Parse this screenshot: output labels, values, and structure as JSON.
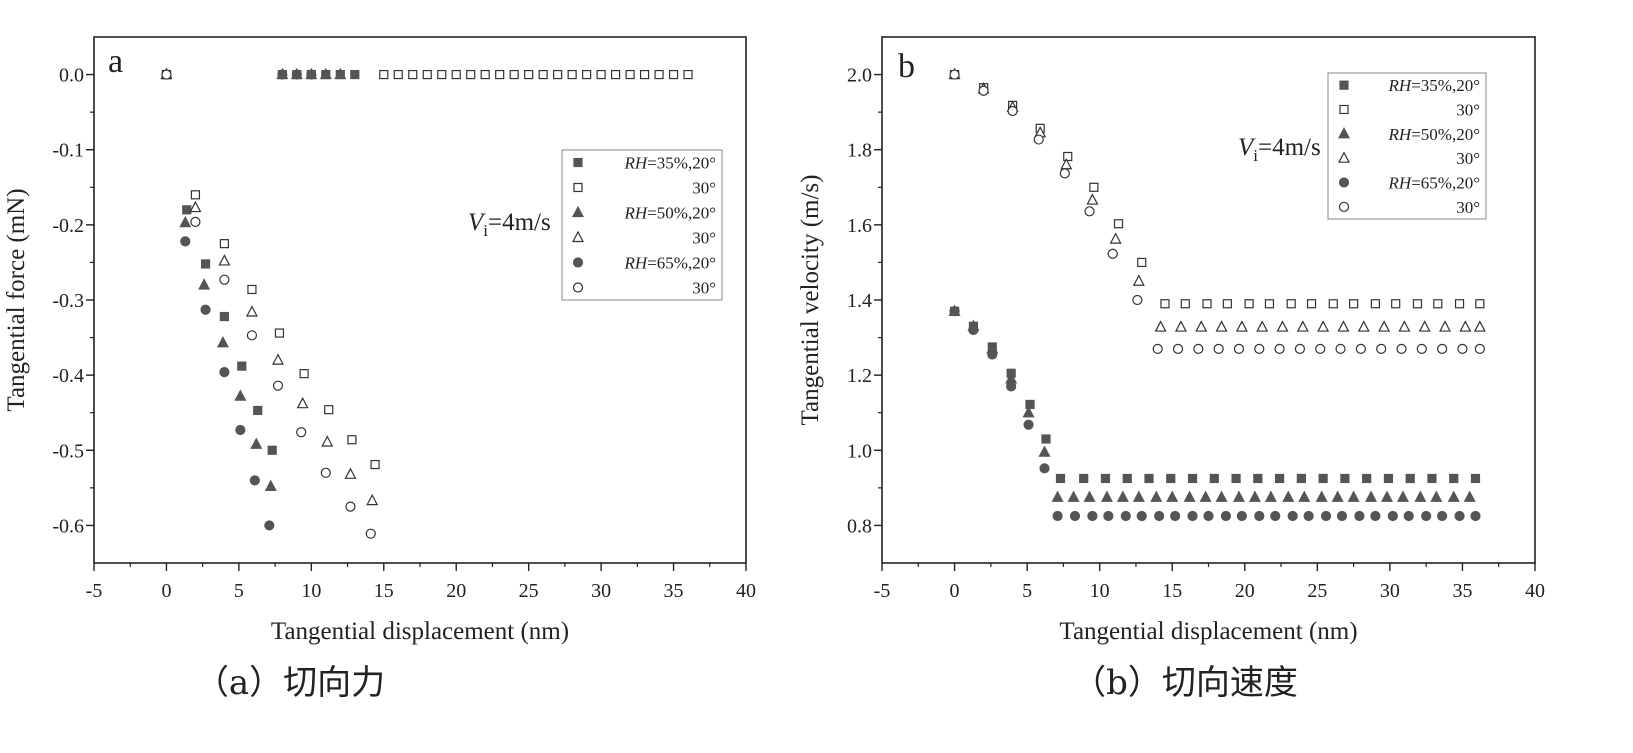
{
  "colors": {
    "axis": "#222222",
    "marker_fill": "#555555",
    "marker_open": "#333333"
  },
  "chart_data": [
    {
      "type": "scatter",
      "panel_label": "a",
      "caption": "（a）切向力",
      "xlabel": "Tangential displacement (nm)",
      "ylabel": "Tangential force (mN)",
      "xlim": [
        -5,
        40
      ],
      "ylim": [
        -0.65,
        0.05
      ],
      "xticks": [
        -5,
        0,
        5,
        10,
        15,
        20,
        25,
        30,
        35,
        40
      ],
      "xtick_labels": [
        "-5",
        "0",
        "5",
        "10",
        "15",
        "20",
        "25",
        "30",
        "35",
        "40"
      ],
      "yticks": [
        0.0,
        -0.1,
        -0.2,
        -0.3,
        -0.4,
        -0.5,
        -0.6
      ],
      "ytick_labels": [
        "0.0",
        "-0.1",
        "-0.2",
        "-0.3",
        "-0.4",
        "-0.5",
        "-0.6"
      ],
      "annotation": {
        "symbol": "V",
        "subscript": "i",
        "text": "=4m/s"
      },
      "legend_position": "upper-right",
      "series": [
        {
          "name": "RH=35%,20°",
          "legend_italic": "RH",
          "legend_rest": "=35%,20°",
          "marker": "square",
          "filled": true,
          "x": [
            0,
            1.4,
            2.7,
            4.0,
            5.2,
            6.3,
            7.3,
            8.0,
            9.0,
            10.0,
            11.0,
            12.0,
            13.0
          ],
          "y": [
            0,
            -0.18,
            -0.252,
            -0.322,
            -0.388,
            -0.447,
            -0.5,
            0,
            0,
            0,
            0,
            0,
            0
          ]
        },
        {
          "name": "30°",
          "legend_italic": "",
          "legend_rest": "30°",
          "marker": "square",
          "filled": false,
          "x": [
            0,
            2.0,
            4.0,
            5.9,
            7.8,
            9.5,
            11.2,
            12.8,
            14.4,
            15.0,
            16.0,
            17.0,
            18.0,
            19.0,
            20.0,
            21.0,
            22.0,
            23.0,
            24.0,
            25.0,
            26.0,
            27.0,
            28.0,
            29.0,
            30.0,
            31.0,
            32.0,
            33.0,
            34.0,
            35.0,
            36.0
          ],
          "y": [
            0,
            -0.16,
            -0.225,
            -0.286,
            -0.344,
            -0.398,
            -0.446,
            -0.486,
            -0.519,
            0,
            0,
            0,
            0,
            0,
            0,
            0,
            0,
            0,
            0,
            0,
            0,
            0,
            0,
            0,
            0,
            0,
            0,
            0,
            0,
            0,
            0
          ]
        },
        {
          "name": "RH=50%,20°",
          "legend_italic": "RH",
          "legend_rest": "=50%,20°",
          "marker": "triangle",
          "filled": true,
          "x": [
            0,
            1.3,
            2.6,
            3.9,
            5.1,
            6.2,
            7.2,
            8.0,
            9.0,
            10.0,
            11.0,
            12.0
          ],
          "y": [
            0,
            -0.197,
            -0.28,
            -0.357,
            -0.428,
            -0.492,
            -0.548,
            0,
            0,
            0,
            0,
            0
          ]
        },
        {
          "name": "30°",
          "legend_italic": "",
          "legend_rest": "30°",
          "marker": "triangle",
          "filled": false,
          "x": [
            0,
            2.0,
            4.0,
            5.9,
            7.7,
            9.4,
            11.1,
            12.7,
            14.2
          ],
          "y": [
            0,
            -0.177,
            -0.248,
            -0.316,
            -0.38,
            -0.438,
            -0.489,
            -0.532,
            -0.567
          ]
        },
        {
          "name": "RH=65%,20°",
          "legend_italic": "RH",
          "legend_rest": "=65%,20°",
          "marker": "circle",
          "filled": true,
          "x": [
            0,
            1.3,
            2.7,
            4.0,
            5.1,
            6.1,
            7.1,
            8.0,
            9.0,
            10.0
          ],
          "y": [
            0,
            -0.222,
            -0.313,
            -0.396,
            -0.473,
            -0.54,
            -0.6,
            0,
            0,
            0
          ]
        },
        {
          "name": "30°",
          "legend_italic": "",
          "legend_rest": "30°",
          "marker": "circle",
          "filled": false,
          "x": [
            0,
            2.0,
            4.0,
            5.9,
            7.7,
            9.3,
            11.0,
            12.7,
            14.1
          ],
          "y": [
            0,
            -0.196,
            -0.273,
            -0.347,
            -0.414,
            -0.476,
            -0.53,
            -0.575,
            -0.611
          ]
        }
      ]
    },
    {
      "type": "scatter",
      "panel_label": "b",
      "caption": "（b）切向速度",
      "xlabel": "Tangential displacement (nm)",
      "ylabel": "Tangential velocity (m/s)",
      "xlim": [
        -5,
        40
      ],
      "ylim": [
        0.7,
        2.1
      ],
      "xticks": [
        -5,
        0,
        5,
        10,
        15,
        20,
        25,
        30,
        35,
        40
      ],
      "xtick_labels": [
        "-5",
        "0",
        "5",
        "10",
        "15",
        "20",
        "25",
        "30",
        "35",
        "40"
      ],
      "yticks": [
        0.8,
        1.0,
        1.2,
        1.4,
        1.6,
        1.8,
        2.0
      ],
      "ytick_labels": [
        "0.8",
        "1.0",
        "1.2",
        "1.4",
        "1.6",
        "1.8",
        "2.0"
      ],
      "annotation": {
        "symbol": "V",
        "subscript": "i",
        "text": "=4m/s"
      },
      "legend_position": "upper-right",
      "series": [
        {
          "name": "RH=35%,20°",
          "legend_italic": "RH",
          "legend_rest": "=35%,20°",
          "marker": "square",
          "filled": true,
          "x": [
            0,
            1.3,
            2.6,
            3.9,
            5.2,
            6.3,
            7.3,
            8.9,
            10.4,
            11.9,
            13.4,
            14.9,
            16.4,
            17.9,
            19.4,
            20.9,
            22.4,
            23.9,
            25.4,
            26.9,
            28.4,
            29.9,
            31.4,
            32.9,
            34.4,
            35.9
          ],
          "y": [
            1.37,
            1.33,
            1.275,
            1.205,
            1.122,
            1.03,
            0.925,
            0.925,
            0.925,
            0.925,
            0.925,
            0.925,
            0.925,
            0.925,
            0.925,
            0.925,
            0.925,
            0.925,
            0.925,
            0.925,
            0.925,
            0.925,
            0.925,
            0.925,
            0.925,
            0.925
          ]
        },
        {
          "name": "30°",
          "legend_italic": "",
          "legend_rest": "30°",
          "marker": "square",
          "filled": false,
          "x": [
            0,
            2.0,
            4.0,
            5.9,
            7.8,
            9.6,
            11.3,
            12.9,
            14.5,
            15.9,
            17.4,
            18.8,
            20.3,
            21.7,
            23.2,
            24.6,
            26.1,
            27.5,
            29.0,
            30.4,
            31.9,
            33.3,
            34.8,
            36.2
          ],
          "y": [
            2.0,
            1.965,
            1.918,
            1.857,
            1.782,
            1.7,
            1.603,
            1.5,
            1.39,
            1.39,
            1.39,
            1.39,
            1.39,
            1.39,
            1.39,
            1.39,
            1.39,
            1.39,
            1.39,
            1.39,
            1.39,
            1.39,
            1.39,
            1.39
          ]
        },
        {
          "name": "RH=50%,20°",
          "legend_italic": "RH",
          "legend_rest": "=50%,20°",
          "marker": "triangle",
          "filled": true,
          "x": [
            0,
            1.3,
            2.6,
            3.9,
            5.1,
            6.2,
            7.1,
            8.2,
            9.3,
            10.5,
            11.6,
            12.7,
            13.9,
            15.0,
            16.2,
            17.3,
            18.4,
            19.6,
            20.7,
            21.8,
            23.0,
            24.1,
            25.3,
            26.4,
            27.5,
            28.7,
            29.8,
            30.9,
            32.1,
            33.2,
            34.4,
            35.5
          ],
          "y": [
            1.37,
            1.33,
            1.27,
            1.19,
            1.1,
            0.995,
            0.875,
            0.875,
            0.875,
            0.875,
            0.875,
            0.875,
            0.875,
            0.875,
            0.875,
            0.875,
            0.875,
            0.875,
            0.875,
            0.875,
            0.875,
            0.875,
            0.875,
            0.875,
            0.875,
            0.875,
            0.875,
            0.875,
            0.875,
            0.875,
            0.875,
            0.875
          ]
        },
        {
          "name": "30°",
          "legend_italic": "",
          "legend_rest": "30°",
          "marker": "triangle",
          "filled": false,
          "x": [
            0,
            2.0,
            4.0,
            5.9,
            7.7,
            9.5,
            11.1,
            12.7,
            14.2,
            15.6,
            17.0,
            18.4,
            19.8,
            21.2,
            22.6,
            24.0,
            25.4,
            26.8,
            28.2,
            29.6,
            31.0,
            32.4,
            33.8,
            35.2,
            36.2
          ],
          "y": [
            2.0,
            1.962,
            1.913,
            1.845,
            1.76,
            1.666,
            1.562,
            1.45,
            1.328,
            1.328,
            1.328,
            1.328,
            1.328,
            1.328,
            1.328,
            1.328,
            1.328,
            1.328,
            1.328,
            1.328,
            1.328,
            1.328,
            1.328,
            1.328,
            1.328
          ]
        },
        {
          "name": "RH=65%,20°",
          "legend_italic": "RH",
          "legend_rest": "=65%,20°",
          "marker": "circle",
          "filled": true,
          "x": [
            0,
            1.3,
            2.6,
            3.9,
            5.1,
            6.2,
            7.1,
            8.3,
            9.5,
            10.6,
            11.8,
            12.9,
            14.1,
            15.2,
            16.4,
            17.5,
            18.7,
            19.8,
            21.0,
            22.1,
            23.3,
            24.4,
            25.6,
            26.7,
            27.9,
            29.0,
            30.2,
            31.3,
            32.5,
            33.6,
            34.8,
            35.9
          ],
          "y": [
            1.37,
            1.32,
            1.255,
            1.17,
            1.068,
            0.952,
            0.825,
            0.825,
            0.825,
            0.825,
            0.825,
            0.825,
            0.825,
            0.825,
            0.825,
            0.825,
            0.825,
            0.825,
            0.825,
            0.825,
            0.825,
            0.825,
            0.825,
            0.825,
            0.825,
            0.825,
            0.825,
            0.825,
            0.825,
            0.825,
            0.825,
            0.825
          ]
        },
        {
          "name": "30°",
          "legend_italic": "",
          "legend_rest": "30°",
          "marker": "circle",
          "filled": false,
          "x": [
            0,
            2.0,
            4.0,
            5.8,
            7.6,
            9.3,
            10.9,
            12.6,
            14.0,
            15.4,
            16.8,
            18.2,
            19.6,
            21.0,
            22.4,
            23.8,
            25.2,
            26.6,
            28.0,
            29.4,
            30.8,
            32.2,
            33.6,
            35.0,
            36.2
          ],
          "y": [
            2.0,
            1.957,
            1.903,
            1.827,
            1.737,
            1.636,
            1.523,
            1.4,
            1.27,
            1.27,
            1.27,
            1.27,
            1.27,
            1.27,
            1.27,
            1.27,
            1.27,
            1.27,
            1.27,
            1.27,
            1.27,
            1.27,
            1.27,
            1.27,
            1.27
          ]
        }
      ]
    }
  ]
}
